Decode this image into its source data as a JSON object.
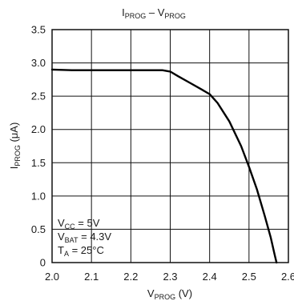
{
  "chart_data": {
    "type": "line",
    "title": {
      "main": "I",
      "main_sub": "PROG",
      "sep": " – ",
      "second": "V",
      "second_sub": "PROG"
    },
    "xlabel": {
      "main": "V",
      "sub": "PROG",
      "unit": " (V)"
    },
    "ylabel": {
      "main": "I",
      "sub": "PROG",
      "unit": " (μA)"
    },
    "xlim": [
      2.0,
      2.6
    ],
    "ylim": [
      0,
      3.5
    ],
    "x_ticks": [
      "2.0",
      "2.1",
      "2.2",
      "2.3",
      "2.4",
      "2.5",
      "2.6"
    ],
    "x_tick_values": [
      2.0,
      2.1,
      2.2,
      2.3,
      2.4,
      2.5,
      2.6
    ],
    "y_ticks": [
      "0",
      "0.5",
      "1.0",
      "1.5",
      "2.0",
      "2.5",
      "3.0",
      "3.5"
    ],
    "y_tick_values": [
      0,
      0.5,
      1.0,
      1.5,
      2.0,
      2.5,
      3.0,
      3.5
    ],
    "grid": true,
    "series": [
      {
        "x": [
          2.0,
          2.05,
          2.1,
          2.15,
          2.2,
          2.25,
          2.28,
          2.3,
          2.32,
          2.35,
          2.38,
          2.4,
          2.42,
          2.45,
          2.48,
          2.5,
          2.52,
          2.54,
          2.555,
          2.565,
          2.57
        ],
        "y": [
          2.9,
          2.89,
          2.89,
          2.89,
          2.89,
          2.89,
          2.89,
          2.87,
          2.8,
          2.7,
          2.6,
          2.53,
          2.4,
          2.12,
          1.75,
          1.44,
          1.1,
          0.7,
          0.38,
          0.12,
          0.0
        ]
      }
    ],
    "annotations": [
      {
        "main": "V",
        "sub": "CC",
        "rest": " = 5V"
      },
      {
        "main": "V",
        "sub": "BAT",
        "rest": " = 4.3V"
      },
      {
        "main": "T",
        "sub": "A",
        "rest": " = 25°C"
      }
    ]
  }
}
